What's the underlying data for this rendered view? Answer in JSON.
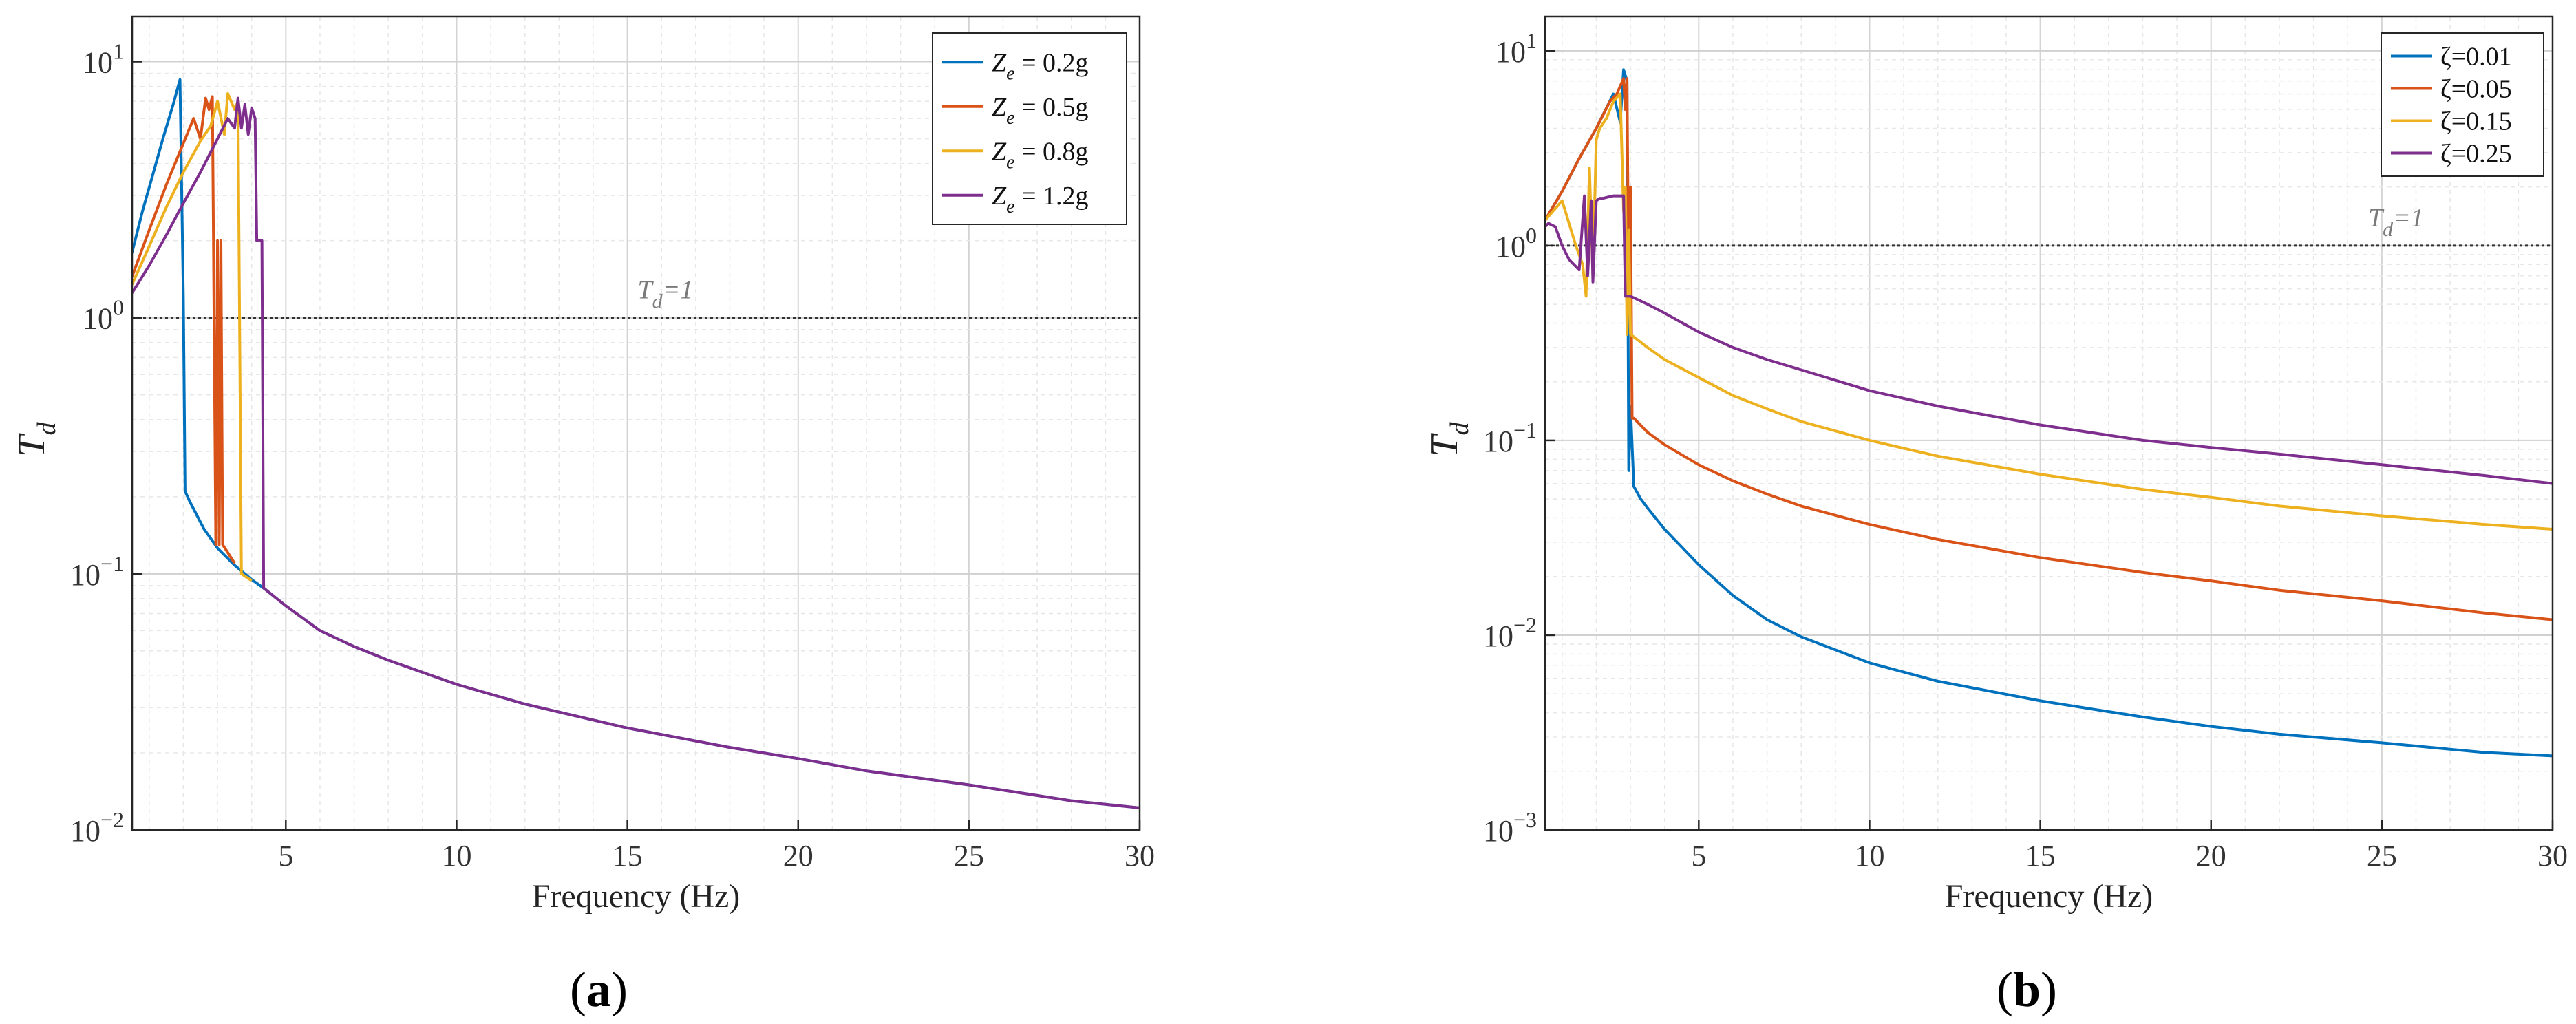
{
  "chart_data": [
    {
      "type": "line",
      "panel_label": "(a)",
      "xlabel": "Frequency (Hz)",
      "ylabel": "T",
      "ylabel_sub": "d",
      "yscale": "log",
      "xlim": [
        0.5,
        30
      ],
      "ylim": [
        0.01,
        15
      ],
      "xticks": [
        5,
        10,
        15,
        20,
        25,
        30
      ],
      "yticks": [
        {
          "value": 0.01,
          "exp": "−2"
        },
        {
          "value": 0.1,
          "exp": "−1"
        },
        {
          "value": 1,
          "exp": "0"
        },
        {
          "value": 10,
          "exp": "1"
        }
      ],
      "grid": true,
      "legend_position": "top-right",
      "reference_line": {
        "y": 1,
        "label": "T",
        "label_sub": "d",
        "label_rest": "=1",
        "label_x": 15.3
      },
      "series": [
        {
          "name": "Z",
          "name_sub": "e",
          "name_rest": " = 0.2g",
          "color": "#0072BD",
          "x": [
            0.5,
            0.8,
            1.1,
            1.4,
            1.7,
            1.9,
            2.0,
            2.05,
            2.2,
            2.6,
            3.0,
            3.5,
            4.0,
            4.4,
            5,
            6,
            7,
            8,
            10,
            12,
            15,
            18,
            20,
            22,
            25,
            28,
            30
          ],
          "y": [
            1.8,
            2.6,
            3.6,
            5.0,
            6.8,
            8.5,
            1.2,
            0.21,
            0.19,
            0.15,
            0.126,
            0.108,
            0.095,
            0.087,
            0.075,
            0.06,
            0.052,
            0.046,
            0.037,
            0.031,
            0.025,
            0.021,
            0.019,
            0.017,
            0.015,
            0.013,
            0.0122
          ]
        },
        {
          "name": "Z",
          "name_sub": "e",
          "name_rest": " = 0.5g",
          "color": "#D95319",
          "x": [
            0.5,
            1.0,
            1.5,
            2.0,
            2.3,
            2.5,
            2.65,
            2.75,
            2.85,
            2.95,
            3.0,
            3.05,
            3.1,
            3.15,
            3.25,
            3.5
          ],
          "y": [
            1.45,
            2.2,
            3.3,
            4.8,
            6.0,
            5.0,
            7.2,
            6.5,
            7.3,
            0.13,
            2.0,
            0.13,
            2.0,
            0.13,
            0.124,
            0.11
          ]
        },
        {
          "name": "Z",
          "name_sub": "e",
          "name_rest": " = 0.8g",
          "color": "#EDB120",
          "x": [
            0.5,
            1.0,
            1.5,
            2.0,
            2.5,
            2.8,
            3.0,
            3.2,
            3.3,
            3.5,
            3.6,
            3.7,
            3.75,
            4.0
          ],
          "y": [
            1.35,
            1.9,
            2.7,
            3.7,
            4.9,
            5.6,
            7.0,
            5.2,
            7.5,
            6.5,
            7.0,
            0.1,
            0.099,
            0.094
          ]
        },
        {
          "name": "Z",
          "name_sub": "e",
          "name_rest": " = 1.2g",
          "color": "#7E2F8E",
          "x": [
            0.5,
            1.0,
            1.5,
            2.0,
            2.5,
            3.0,
            3.3,
            3.5,
            3.6,
            3.7,
            3.8,
            3.9,
            4.0,
            4.1,
            4.15,
            4.3,
            4.35,
            4.4,
            5,
            6,
            7,
            8,
            10,
            12,
            15,
            18,
            20,
            22,
            25,
            28,
            30
          ],
          "y": [
            1.25,
            1.6,
            2.1,
            2.8,
            3.7,
            5.0,
            6.0,
            5.5,
            7.2,
            5.5,
            6.8,
            5.2,
            6.6,
            6.0,
            2.0,
            2.0,
            0.088,
            0.087,
            0.075,
            0.06,
            0.052,
            0.046,
            0.037,
            0.031,
            0.025,
            0.021,
            0.019,
            0.017,
            0.015,
            0.013,
            0.0122
          ]
        }
      ]
    },
    {
      "type": "line",
      "panel_label": "(b)",
      "xlabel": "Frequency (Hz)",
      "ylabel": "T",
      "ylabel_sub": "d",
      "yscale": "log",
      "xlim": [
        0.5,
        30
      ],
      "ylim": [
        0.001,
        15
      ],
      "xticks": [
        5,
        10,
        15,
        20,
        25,
        30
      ],
      "yticks": [
        {
          "value": 0.001,
          "exp": "−3"
        },
        {
          "value": 0.01,
          "exp": "−2"
        },
        {
          "value": 0.1,
          "exp": "−1"
        },
        {
          "value": 1,
          "exp": "0"
        },
        {
          "value": 10,
          "exp": "1"
        }
      ],
      "grid": true,
      "legend_position": "top-right",
      "reference_line": {
        "y": 1,
        "label": "T",
        "label_sub": "d",
        "label_rest": "=1",
        "label_x": 24.6
      },
      "series": [
        {
          "name": "ζ=0.01",
          "color": "#0072BD",
          "x": [
            0.5,
            1.0,
            1.5,
            2.0,
            2.5,
            2.7,
            2.8,
            2.9,
            2.95,
            3.0,
            3.1,
            3.3,
            3.5,
            4.0,
            5,
            6,
            7,
            8,
            10,
            12,
            15,
            18,
            20,
            22,
            25,
            28,
            30
          ],
          "y": [
            1.35,
            1.9,
            2.8,
            4.0,
            6.0,
            4.3,
            8.0,
            7.0,
            0.07,
            0.15,
            0.058,
            0.05,
            0.045,
            0.035,
            0.023,
            0.016,
            0.012,
            0.0098,
            0.0072,
            0.0058,
            0.0046,
            0.0038,
            0.0034,
            0.0031,
            0.0028,
            0.0025,
            0.0024
          ]
        },
        {
          "name": "ζ=0.05",
          "color": "#D95319",
          "x": [
            0.5,
            1.0,
            1.5,
            2.0,
            2.4,
            2.6,
            2.8,
            2.85,
            2.9,
            2.95,
            3.0,
            3.05,
            3.1,
            3.5,
            4,
            5,
            6,
            7,
            8,
            10,
            12,
            15,
            18,
            20,
            22,
            25,
            28,
            30
          ],
          "y": [
            1.35,
            1.9,
            2.8,
            4.0,
            5.5,
            6.0,
            7.2,
            5.0,
            7.2,
            0.5,
            2.0,
            0.13,
            0.13,
            0.11,
            0.095,
            0.075,
            0.062,
            0.053,
            0.046,
            0.037,
            0.031,
            0.025,
            0.021,
            0.019,
            0.017,
            0.015,
            0.013,
            0.012
          ]
        },
        {
          "name": "ζ=0.15",
          "color": "#EDB120",
          "x": [
            0.5,
            1.0,
            1.4,
            1.6,
            1.7,
            1.8,
            1.9,
            2.0,
            2.1,
            2.3,
            2.5,
            2.7,
            2.8,
            2.85,
            2.9,
            2.95,
            3.0,
            3.1,
            3.5,
            4,
            5,
            6,
            7,
            8,
            10,
            12,
            15,
            18,
            20,
            22,
            25,
            28,
            30
          ],
          "y": [
            1.35,
            1.7,
            1.0,
            0.8,
            0.55,
            2.5,
            0.7,
            3.5,
            4.0,
            4.5,
            5.5,
            6.0,
            1.5,
            2.0,
            0.35,
            1.2,
            0.35,
            0.34,
            0.3,
            0.26,
            0.21,
            0.17,
            0.145,
            0.125,
            0.1,
            0.083,
            0.067,
            0.056,
            0.051,
            0.046,
            0.041,
            0.037,
            0.035
          ]
        },
        {
          "name": "ζ=0.25",
          "color": "#7E2F8E",
          "x": [
            0.5,
            0.6,
            0.8,
            1.0,
            1.2,
            1.5,
            1.65,
            1.75,
            1.85,
            1.9,
            2.0,
            2.1,
            2.2,
            2.5,
            2.6,
            2.8,
            2.85,
            3.0,
            3.5,
            4,
            5,
            6,
            7,
            8,
            10,
            12,
            15,
            18,
            20,
            22,
            25,
            28,
            30
          ],
          "y": [
            1.25,
            1.3,
            1.25,
            1.0,
            0.85,
            0.75,
            1.8,
            0.7,
            1.7,
            0.65,
            1.7,
            1.75,
            1.75,
            1.8,
            1.8,
            1.8,
            0.55,
            0.55,
            0.5,
            0.45,
            0.36,
            0.3,
            0.26,
            0.23,
            0.18,
            0.15,
            0.12,
            0.1,
            0.092,
            0.085,
            0.075,
            0.066,
            0.06
          ]
        }
      ]
    }
  ]
}
